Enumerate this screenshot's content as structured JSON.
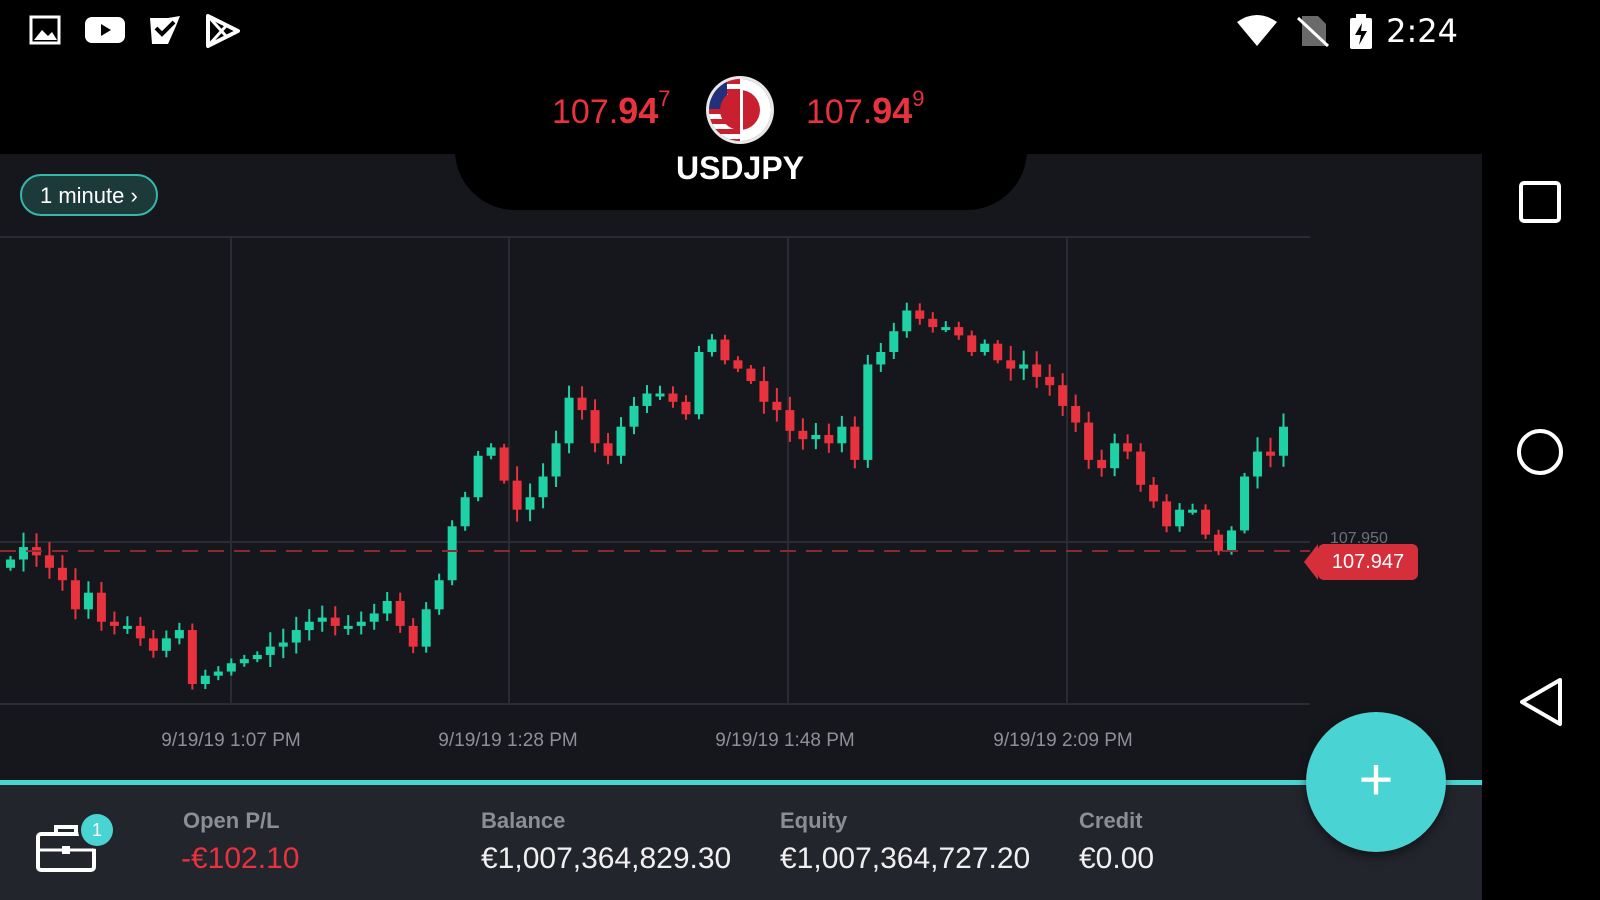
{
  "status_bar": {
    "time": "2:24",
    "left_icons": [
      "gallery-icon",
      "youtube-icon",
      "play-games-icon",
      "play-store-icon"
    ],
    "right_icons": [
      "wifi-icon",
      "no-sim-icon",
      "battery-charging-icon"
    ]
  },
  "quote": {
    "symbol": "USDJPY",
    "bid": {
      "main": "107.",
      "big": "94",
      "pip": "7"
    },
    "ask": {
      "main": "107.",
      "big": "94",
      "pip": "9"
    },
    "color": "#e8323d"
  },
  "chart": {
    "timeframe_label": "1 minute ›",
    "current_price": "107.947",
    "ghost_price": "107.950",
    "x_labels": [
      "9/19/19 1:07 PM",
      "9/19/19 1:28 PM",
      "9/19/19 1:48 PM",
      "9/19/19 2:09 PM"
    ],
    "up_color": "#1fd2a5",
    "down_color": "#e8323d"
  },
  "chart_data": {
    "type": "candlestick",
    "symbol": "USDJPY",
    "x_ticks": [
      "9/19/19 1:07 PM",
      "9/19/19 1:28 PM",
      "9/19/19 1:48 PM",
      "9/19/19 2:09 PM"
    ],
    "current_price": 107.947,
    "closes_relative": [
      0.3,
      0.33,
      0.31,
      0.28,
      0.25,
      0.18,
      0.22,
      0.15,
      0.14,
      0.14,
      0.11,
      0.08,
      0.11,
      0.13,
      0.0,
      0.02,
      0.03,
      0.05,
      0.06,
      0.07,
      0.09,
      0.1,
      0.13,
      0.15,
      0.16,
      0.14,
      0.14,
      0.15,
      0.17,
      0.2,
      0.14,
      0.09,
      0.18,
      0.25,
      0.38,
      0.45,
      0.55,
      0.57,
      0.49,
      0.42,
      0.45,
      0.5,
      0.58,
      0.69,
      0.66,
      0.58,
      0.55,
      0.62,
      0.67,
      0.7,
      0.7,
      0.68,
      0.65,
      0.8,
      0.83,
      0.78,
      0.76,
      0.73,
      0.68,
      0.66,
      0.61,
      0.59,
      0.6,
      0.58,
      0.62,
      0.54,
      0.77,
      0.8,
      0.85,
      0.9,
      0.88,
      0.86,
      0.86,
      0.84,
      0.8,
      0.82,
      0.78,
      0.76,
      0.77,
      0.74,
      0.72,
      0.67,
      0.63,
      0.54,
      0.52,
      0.58,
      0.56,
      0.48,
      0.44,
      0.38,
      0.42,
      0.42,
      0.36,
      0.32,
      0.37,
      0.5,
      0.56,
      0.55,
      0.62
    ],
    "y_reference": "107.947"
  },
  "account": {
    "open_pl_label": "Open P/L",
    "open_pl_value": "-€102.10",
    "balance_label": "Balance",
    "balance_value": "€1,007,364,829.30",
    "equity_label": "Equity",
    "equity_value": "€1,007,364,727.20",
    "credit_label": "Credit",
    "credit_value": "€0.00",
    "positions_badge": "1"
  },
  "fab": {
    "label": "+"
  },
  "nav": {
    "buttons": [
      "recents-icon",
      "home-icon",
      "back-icon"
    ]
  }
}
